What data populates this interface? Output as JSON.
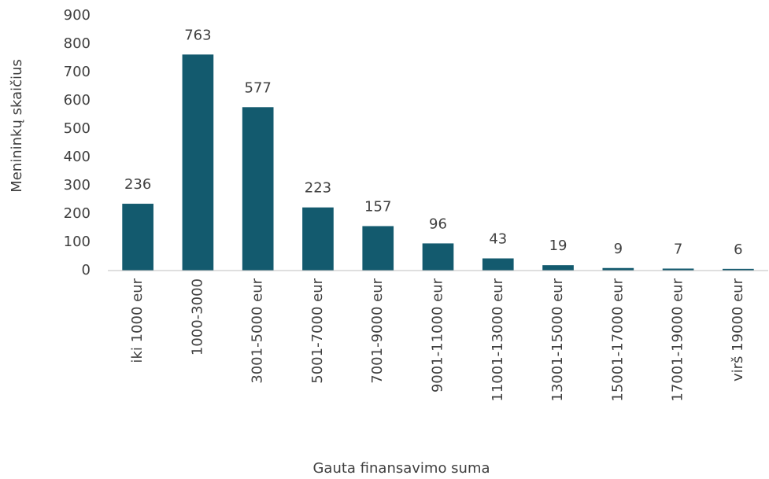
{
  "chart_data": {
    "type": "bar",
    "categories": [
      "iki 1000 eur",
      "1000-3000",
      "3001-5000 eur",
      "5001-7000 eur",
      "7001-9000 eur",
      "9001-11000 eur",
      "11001-13000 eur",
      "13001-15000 eur",
      "15001-17000 eur",
      "17001-19000 eur",
      "virš 19000 eur"
    ],
    "values": [
      236,
      763,
      577,
      223,
      157,
      96,
      43,
      19,
      9,
      7,
      6
    ],
    "color": "#135a6e",
    "xlabel": "Gauta finansavimo suma",
    "ylabel": "Menininkų skaičius",
    "ylim": [
      0,
      900
    ],
    "yticks": [
      0,
      100,
      200,
      300,
      400,
      500,
      600,
      700,
      800,
      900
    ],
    "grid": false
  }
}
